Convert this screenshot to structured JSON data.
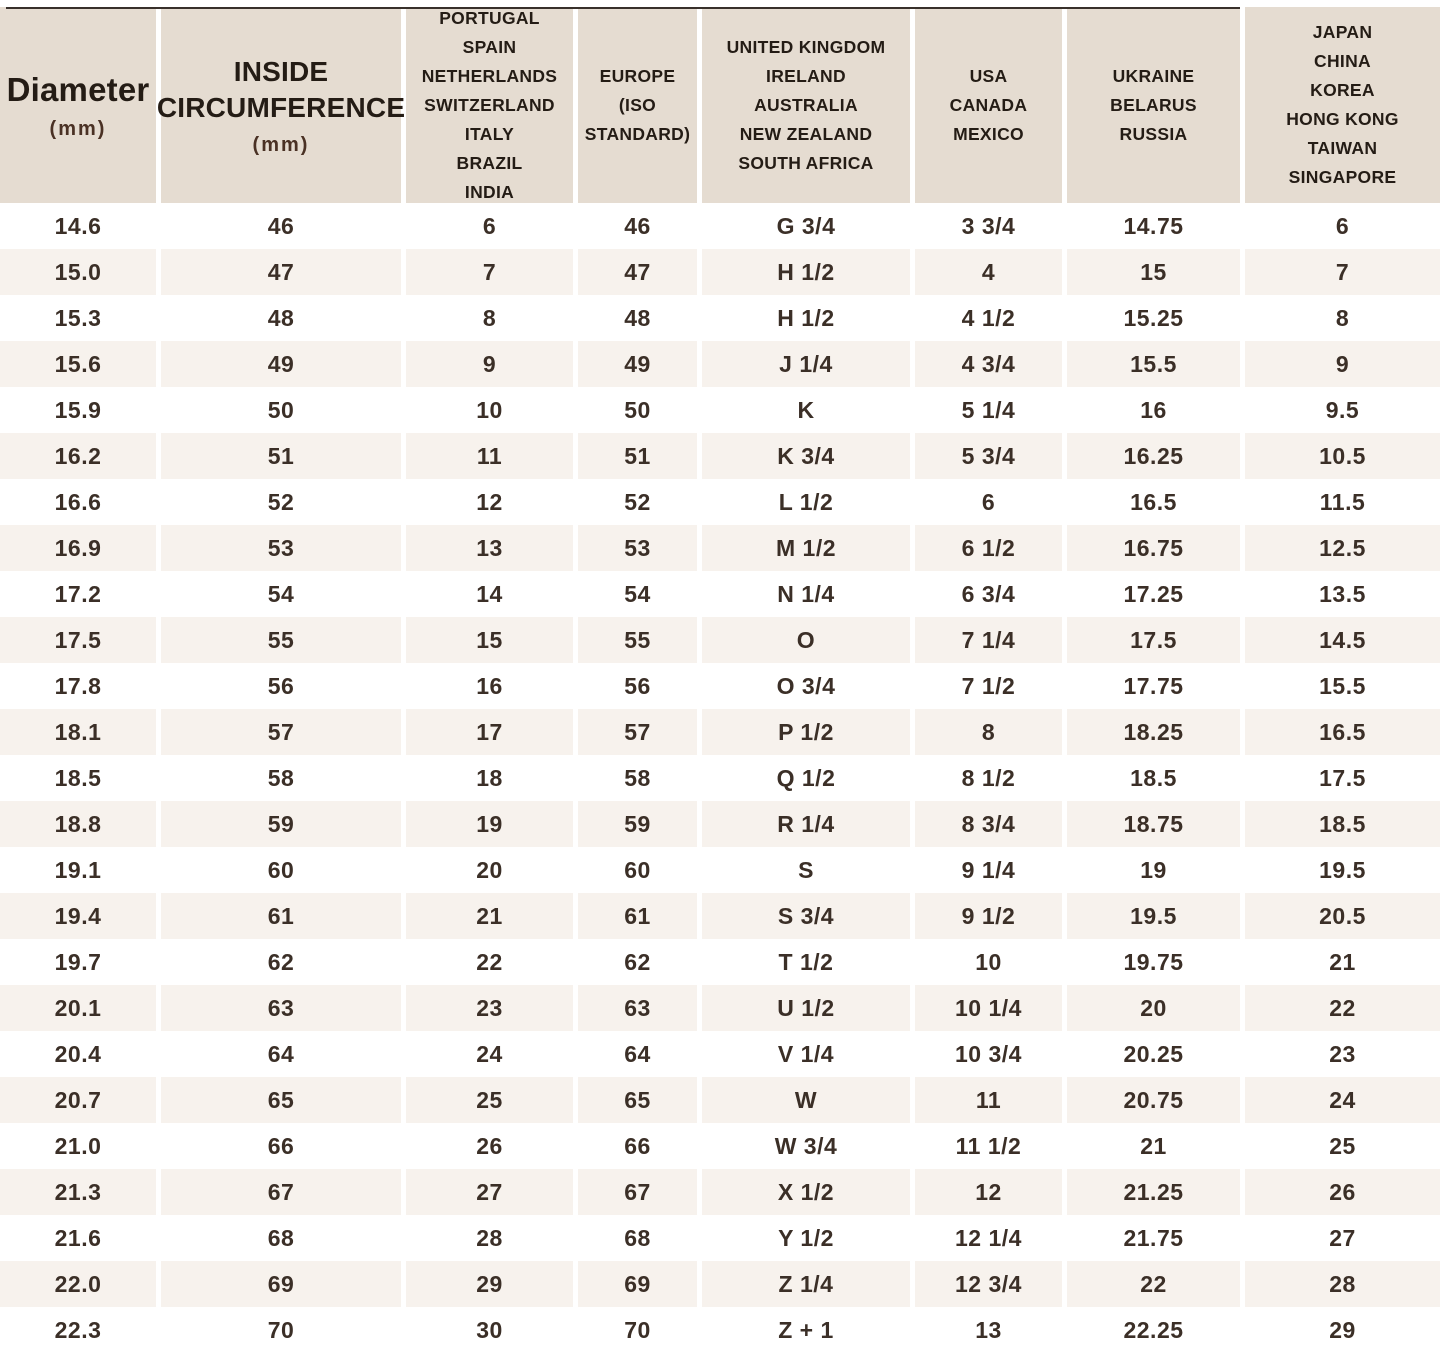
{
  "colors": {
    "header_bg": "#e5dcd1",
    "stripe_bg": "#f7f2ed",
    "row_bg": "#ffffff",
    "header_text": "#241c15",
    "cell_text": "#3b2f27",
    "mm_accent": "#4a3124",
    "top_line": "#38302b"
  },
  "chart_data": {
    "type": "table",
    "columns": [
      {
        "id": "diameter",
        "lines": [
          "Diameter"
        ],
        "sub": "(mm)"
      },
      {
        "id": "circumference",
        "lines": [
          "INSIDE",
          "CIRCUMFERENCE"
        ],
        "sub": "(mm)"
      },
      {
        "id": "portugal-group",
        "lines": [
          "PORTUGAL",
          "SPAIN",
          "NETHERLANDS",
          "SWITZERLAND",
          "ITALY",
          "BRAZIL",
          "INDIA"
        ]
      },
      {
        "id": "europe-iso",
        "lines": [
          "EUROPE",
          "(ISO",
          "STANDARD)"
        ]
      },
      {
        "id": "uk-group",
        "lines": [
          "UNITED KINGDOM",
          "IRELAND",
          "AUSTRALIA",
          "NEW ZEALAND",
          "SOUTH AFRICA"
        ]
      },
      {
        "id": "usa-group",
        "lines": [
          "USA",
          "CANADA",
          "MEXICO"
        ]
      },
      {
        "id": "ukraine-group",
        "lines": [
          "UKRAINE",
          "BELARUS",
          "RUSSIA"
        ]
      },
      {
        "id": "japan-group",
        "lines": [
          "JAPAN",
          "CHINA",
          "KOREA",
          "HONG KONG",
          "TAIWAN",
          "SINGAPORE"
        ]
      }
    ],
    "rows": [
      [
        "14.6",
        "46",
        "6",
        "46",
        "G 3/4",
        "3 3/4",
        "14.75",
        "6"
      ],
      [
        "15.0",
        "47",
        "7",
        "47",
        "H 1/2",
        "4",
        "15",
        "7"
      ],
      [
        "15.3",
        "48",
        "8",
        "48",
        "H 1/2",
        "4 1/2",
        "15.25",
        "8"
      ],
      [
        "15.6",
        "49",
        "9",
        "49",
        "J 1/4",
        "4 3/4",
        "15.5",
        "9"
      ],
      [
        "15.9",
        "50",
        "10",
        "50",
        "K",
        "5 1/4",
        "16",
        "9.5"
      ],
      [
        "16.2",
        "51",
        "11",
        "51",
        "K 3/4",
        "5 3/4",
        "16.25",
        "10.5"
      ],
      [
        "16.6",
        "52",
        "12",
        "52",
        "L 1/2",
        "6",
        "16.5",
        "11.5"
      ],
      [
        "16.9",
        "53",
        "13",
        "53",
        "M 1/2",
        "6 1/2",
        "16.75",
        "12.5"
      ],
      [
        "17.2",
        "54",
        "14",
        "54",
        "N 1/4",
        "6 3/4",
        "17.25",
        "13.5"
      ],
      [
        "17.5",
        "55",
        "15",
        "55",
        "O",
        "7 1/4",
        "17.5",
        "14.5"
      ],
      [
        "17.8",
        "56",
        "16",
        "56",
        "O 3/4",
        "7 1/2",
        "17.75",
        "15.5"
      ],
      [
        "18.1",
        "57",
        "17",
        "57",
        "P 1/2",
        "8",
        "18.25",
        "16.5"
      ],
      [
        "18.5",
        "58",
        "18",
        "58",
        "Q 1/2",
        "8 1/2",
        "18.5",
        "17.5"
      ],
      [
        "18.8",
        "59",
        "19",
        "59",
        "R 1/4",
        "8 3/4",
        "18.75",
        "18.5"
      ],
      [
        "19.1",
        "60",
        "20",
        "60",
        "S",
        "9 1/4",
        "19",
        "19.5"
      ],
      [
        "19.4",
        "61",
        "21",
        "61",
        "S 3/4",
        "9 1/2",
        "19.5",
        "20.5"
      ],
      [
        "19.7",
        "62",
        "22",
        "62",
        "T 1/2",
        "10",
        "19.75",
        "21"
      ],
      [
        "20.1",
        "63",
        "23",
        "63",
        "U 1/2",
        "10 1/4",
        "20",
        "22"
      ],
      [
        "20.4",
        "64",
        "24",
        "64",
        "V 1/4",
        "10 3/4",
        "20.25",
        "23"
      ],
      [
        "20.7",
        "65",
        "25",
        "65",
        "W",
        "11",
        "20.75",
        "24"
      ],
      [
        "21.0",
        "66",
        "26",
        "66",
        "W 3/4",
        "11 1/2",
        "21",
        "25"
      ],
      [
        "21.3",
        "67",
        "27",
        "67",
        "X 1/2",
        "12",
        "21.25",
        "26"
      ],
      [
        "21.6",
        "68",
        "28",
        "68",
        "Y 1/2",
        "12 1/4",
        "21.75",
        "27"
      ],
      [
        "22.0",
        "69",
        "29",
        "69",
        "Z 1/4",
        "12 3/4",
        "22",
        "28"
      ],
      [
        "22.3",
        "70",
        "30",
        "70",
        "Z + 1",
        "13",
        "22.25",
        "29"
      ]
    ]
  }
}
